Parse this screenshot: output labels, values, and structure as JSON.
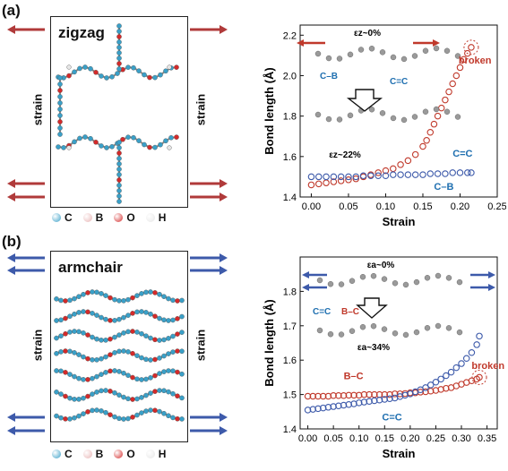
{
  "panel_a": {
    "label": "(a)",
    "title": "zigzag",
    "strain_label": "strain",
    "arrow_color": "#b03a3a"
  },
  "panel_b": {
    "label": "(b)",
    "title": "armchair",
    "strain_label": "strain",
    "arrow_color": "#3d5aaa"
  },
  "legend": [
    {
      "symbol": "C",
      "color": "#3aa0c8"
    },
    {
      "symbol": "B",
      "color": "#e8b4b4"
    },
    {
      "symbol": "O",
      "color": "#d42a2a"
    },
    {
      "symbol": "H",
      "color": "#e6e6e6"
    }
  ],
  "chart_data": [
    {
      "type": "scatter",
      "xlabel": "Strain",
      "ylabel": "Bond length (Å)",
      "xlim": [
        -0.015,
        0.25
      ],
      "ylim": [
        1.4,
        2.25
      ],
      "xticks": [
        "0.00",
        "0.05",
        "0.10",
        "0.15",
        "0.20",
        "0.25"
      ],
      "yticks": [
        "1.4",
        "1.6",
        "1.8",
        "2.0",
        "2.2"
      ],
      "inset_labels": {
        "top": "εz~0%",
        "bottom": "εz~22%",
        "cb": "C–B",
        "cc": "C=C"
      },
      "annotations": {
        "broken": "broken",
        "cc": "C=C",
        "cb": "C–B"
      },
      "series": [
        {
          "name": "C=C",
          "color": "#c0392b",
          "x": [
            0.0,
            0.01,
            0.02,
            0.03,
            0.04,
            0.05,
            0.06,
            0.07,
            0.08,
            0.09,
            0.1,
            0.11,
            0.12,
            0.13,
            0.14,
            0.15,
            0.155,
            0.16,
            0.165,
            0.17,
            0.175,
            0.18,
            0.185,
            0.19,
            0.195,
            0.2,
            0.205,
            0.21,
            0.215
          ],
          "y": [
            1.46,
            1.465,
            1.47,
            1.475,
            1.48,
            1.485,
            1.49,
            1.5,
            1.51,
            1.52,
            1.53,
            1.54,
            1.56,
            1.58,
            1.61,
            1.65,
            1.68,
            1.72,
            1.76,
            1.8,
            1.84,
            1.88,
            1.92,
            1.96,
            2.0,
            2.04,
            2.08,
            2.11,
            2.14
          ]
        },
        {
          "name": "C–B",
          "color": "#3d5aaa",
          "x": [
            0.0,
            0.01,
            0.02,
            0.03,
            0.04,
            0.05,
            0.06,
            0.07,
            0.08,
            0.09,
            0.1,
            0.11,
            0.12,
            0.13,
            0.14,
            0.15,
            0.16,
            0.17,
            0.18,
            0.19,
            0.2,
            0.21,
            0.215
          ],
          "y": [
            1.5,
            1.5,
            1.5,
            1.5,
            1.5,
            1.5,
            1.5,
            1.505,
            1.505,
            1.505,
            1.505,
            1.51,
            1.51,
            1.51,
            1.51,
            1.51,
            1.515,
            1.515,
            1.515,
            1.52,
            1.52,
            1.52,
            1.52
          ]
        }
      ]
    },
    {
      "type": "scatter",
      "xlabel": "Strain",
      "ylabel": "Bond length (Å)",
      "xlim": [
        -0.015,
        0.37
      ],
      "ylim": [
        1.4,
        1.9
      ],
      "xticks": [
        "0.00",
        "0.05",
        "0.10",
        "0.15",
        "0.20",
        "0.25",
        "0.30",
        "0.35"
      ],
      "yticks": [
        "1.4",
        "1.5",
        "1.6",
        "1.7",
        "1.8"
      ],
      "inset_labels": {
        "top": "εa~0%",
        "bottom": "εa~34%",
        "cc": "C=C",
        "bc": "B–C"
      },
      "annotations": {
        "broken": "broken",
        "bc": "B–C",
        "cc": "C=C"
      },
      "series": [
        {
          "name": "B–C",
          "color": "#c0392b",
          "x": [
            0.0,
            0.01,
            0.02,
            0.03,
            0.04,
            0.05,
            0.06,
            0.07,
            0.08,
            0.09,
            0.1,
            0.11,
            0.12,
            0.13,
            0.14,
            0.15,
            0.16,
            0.17,
            0.18,
            0.19,
            0.2,
            0.21,
            0.22,
            0.23,
            0.24,
            0.25,
            0.26,
            0.27,
            0.28,
            0.29,
            0.3,
            0.31,
            0.32,
            0.33,
            0.335
          ],
          "y": [
            1.495,
            1.495,
            1.495,
            1.495,
            1.495,
            1.497,
            1.497,
            1.497,
            1.498,
            1.498,
            1.498,
            1.5,
            1.5,
            1.5,
            1.5,
            1.5,
            1.5,
            1.502,
            1.502,
            1.503,
            1.505,
            1.505,
            1.507,
            1.508,
            1.51,
            1.512,
            1.515,
            1.518,
            1.52,
            1.525,
            1.53,
            1.535,
            1.54,
            1.545,
            1.55
          ]
        },
        {
          "name": "C=C",
          "color": "#3d5aaa",
          "x": [
            0.0,
            0.01,
            0.02,
            0.03,
            0.04,
            0.05,
            0.06,
            0.07,
            0.08,
            0.09,
            0.1,
            0.11,
            0.12,
            0.13,
            0.14,
            0.15,
            0.16,
            0.17,
            0.18,
            0.19,
            0.2,
            0.21,
            0.22,
            0.23,
            0.24,
            0.25,
            0.26,
            0.27,
            0.28,
            0.29,
            0.3,
            0.31,
            0.32,
            0.33,
            0.335
          ],
          "y": [
            1.455,
            1.457,
            1.459,
            1.461,
            1.463,
            1.465,
            1.467,
            1.469,
            1.471,
            1.473,
            1.476,
            1.478,
            1.48,
            1.482,
            1.484,
            1.486,
            1.488,
            1.49,
            1.494,
            1.498,
            1.502,
            1.508,
            1.514,
            1.52,
            1.528,
            1.536,
            1.545,
            1.555,
            1.565,
            1.578,
            1.59,
            1.605,
            1.622,
            1.645,
            1.67
          ]
        }
      ]
    }
  ]
}
